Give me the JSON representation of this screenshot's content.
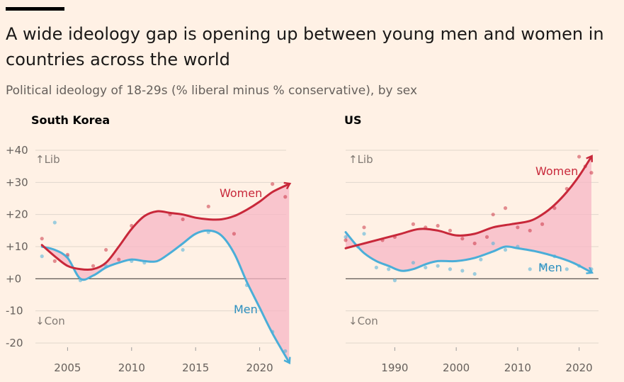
{
  "title": "A wide ideology gap is opening up between young men and women in countries across the world",
  "subtitle": "Political ideology of 18-29s (% liberal minus % conservative), by sex",
  "colors": {
    "women": "#c8283a",
    "men": "#4aaed8",
    "fill": "#f7b5c4",
    "grid": "#e0d6cc",
    "zero": "#4a4542"
  },
  "chart_data": [
    {
      "type": "line",
      "panel": "South Korea",
      "ylim": [
        -20,
        40
      ],
      "xlim": [
        2002.6,
        2022.4
      ],
      "yticks": [
        40,
        30,
        20,
        10,
        0,
        -10,
        -20
      ],
      "ytick_labels": [
        "+40",
        "+30",
        "+20",
        "+10",
        "+0",
        "-10",
        "-20"
      ],
      "xticks": [
        2005,
        2010,
        2015,
        2020
      ],
      "xtick_labels": [
        "2005",
        "2010",
        "2015",
        "2020"
      ],
      "lib_label": "↑Lib",
      "con_label": "↓Con",
      "series": [
        {
          "name": "Women",
          "x": [
            2003,
            2004,
            2005,
            2006,
            2007,
            2008,
            2009,
            2010,
            2011,
            2012,
            2013,
            2014,
            2015,
            2016,
            2017,
            2018,
            2019,
            2020,
            2021,
            2022.3
          ],
          "y": [
            10.5,
            7,
            4,
            3,
            3,
            5,
            10,
            15.5,
            19.5,
            21,
            20.5,
            20,
            19,
            18.5,
            18.5,
            19.5,
            21.5,
            24,
            27,
            29.5
          ]
        },
        {
          "name": "Men",
          "x": [
            2003,
            2004,
            2005,
            2006,
            2007,
            2008,
            2009,
            2010,
            2011,
            2012,
            2013,
            2014,
            2015,
            2016,
            2017,
            2018,
            2019,
            2020,
            2021,
            2022.3
          ],
          "y": [
            10,
            9,
            6.5,
            0,
            1,
            3.5,
            5,
            6,
            5.5,
            5.5,
            8,
            11,
            14,
            15,
            13.5,
            8,
            -1,
            -9,
            -17,
            -26
          ]
        }
      ],
      "points": {
        "Women": [
          [
            2003,
            12.5
          ],
          [
            2004,
            5.5
          ],
          [
            2005,
            7.5
          ],
          [
            2007,
            4
          ],
          [
            2008,
            9
          ],
          [
            2009,
            6
          ],
          [
            2010,
            16.5
          ],
          [
            2013,
            20
          ],
          [
            2014,
            18.5
          ],
          [
            2016,
            22.5
          ],
          [
            2018,
            14
          ],
          [
            2021,
            29.5
          ],
          [
            2022,
            25.5
          ]
        ],
        "Men": [
          [
            2003,
            7
          ],
          [
            2004,
            17.5
          ],
          [
            2005,
            7
          ],
          [
            2006,
            -0.5
          ],
          [
            2008,
            4
          ],
          [
            2010,
            5.5
          ],
          [
            2011,
            5
          ],
          [
            2014,
            9
          ],
          [
            2016,
            14.5
          ],
          [
            2019,
            -2
          ],
          [
            2021,
            -16.5
          ],
          [
            2022,
            -22.5
          ]
        ]
      }
    },
    {
      "type": "line",
      "panel": "US",
      "ylim": [
        -20,
        40
      ],
      "xlim": [
        1982,
        2023.5
      ],
      "yticks": [
        40,
        30,
        20,
        10,
        0,
        -10,
        -20
      ],
      "xticks": [
        1990,
        2000,
        2010,
        2020
      ],
      "xtick_labels": [
        "1990",
        "2000",
        "2010",
        "2020"
      ],
      "lib_label": "↑Lib",
      "con_label": "↓Con",
      "series": [
        {
          "name": "Women",
          "x": [
            1982,
            1985,
            1988,
            1991,
            1994,
            1997,
            2000,
            2003,
            2006,
            2009,
            2012,
            2014,
            2016,
            2018,
            2020,
            2022
          ],
          "y": [
            9.5,
            11,
            12.5,
            14,
            15.5,
            15,
            13.5,
            14,
            16,
            17,
            18,
            20,
            23,
            27,
            32,
            38
          ]
        },
        {
          "name": "Men",
          "x": [
            1982,
            1983.5,
            1985,
            1987,
            1989,
            1991,
            1993,
            1995,
            1997,
            2000,
            2003,
            2006,
            2008,
            2010,
            2013,
            2016,
            2019,
            2022
          ],
          "y": [
            14.5,
            11,
            8,
            5.5,
            4,
            2.5,
            3,
            4.5,
            5.5,
            5.5,
            6.5,
            8.5,
            10,
            9.5,
            8.5,
            7,
            5,
            2
          ]
        }
      ],
      "points": {
        "Women": [
          [
            1982,
            12
          ],
          [
            1985,
            16
          ],
          [
            1988,
            12
          ],
          [
            1990,
            13
          ],
          [
            1993,
            17
          ],
          [
            1995,
            16
          ],
          [
            1997,
            16.5
          ],
          [
            1999,
            15
          ],
          [
            2001,
            12.5
          ],
          [
            2003,
            11
          ],
          [
            2005,
            13
          ],
          [
            2006,
            20
          ],
          [
            2008,
            22
          ],
          [
            2010,
            16
          ],
          [
            2012,
            15
          ],
          [
            2014,
            17
          ],
          [
            2016,
            22
          ],
          [
            2018,
            28
          ],
          [
            2020,
            38
          ],
          [
            2021,
            35
          ],
          [
            2022,
            33
          ]
        ],
        "Men": [
          [
            1982,
            13
          ],
          [
            1984,
            10
          ],
          [
            1985,
            14
          ],
          [
            1987,
            3.5
          ],
          [
            1989,
            3
          ],
          [
            1990,
            -0.5
          ],
          [
            1993,
            5
          ],
          [
            1995,
            3.5
          ],
          [
            1997,
            4
          ],
          [
            1999,
            3
          ],
          [
            2001,
            2.5
          ],
          [
            2003,
            1.5
          ],
          [
            2004,
            6
          ],
          [
            2006,
            11
          ],
          [
            2008,
            9
          ],
          [
            2010,
            10
          ],
          [
            2012,
            3
          ],
          [
            2014,
            4
          ],
          [
            2016,
            7
          ],
          [
            2018,
            3
          ],
          [
            2020,
            4
          ],
          [
            2022,
            3
          ]
        ]
      }
    }
  ],
  "labels": {
    "south_korea_title": "South Korea",
    "us_title": "US",
    "women": "Women",
    "men": "Men"
  }
}
